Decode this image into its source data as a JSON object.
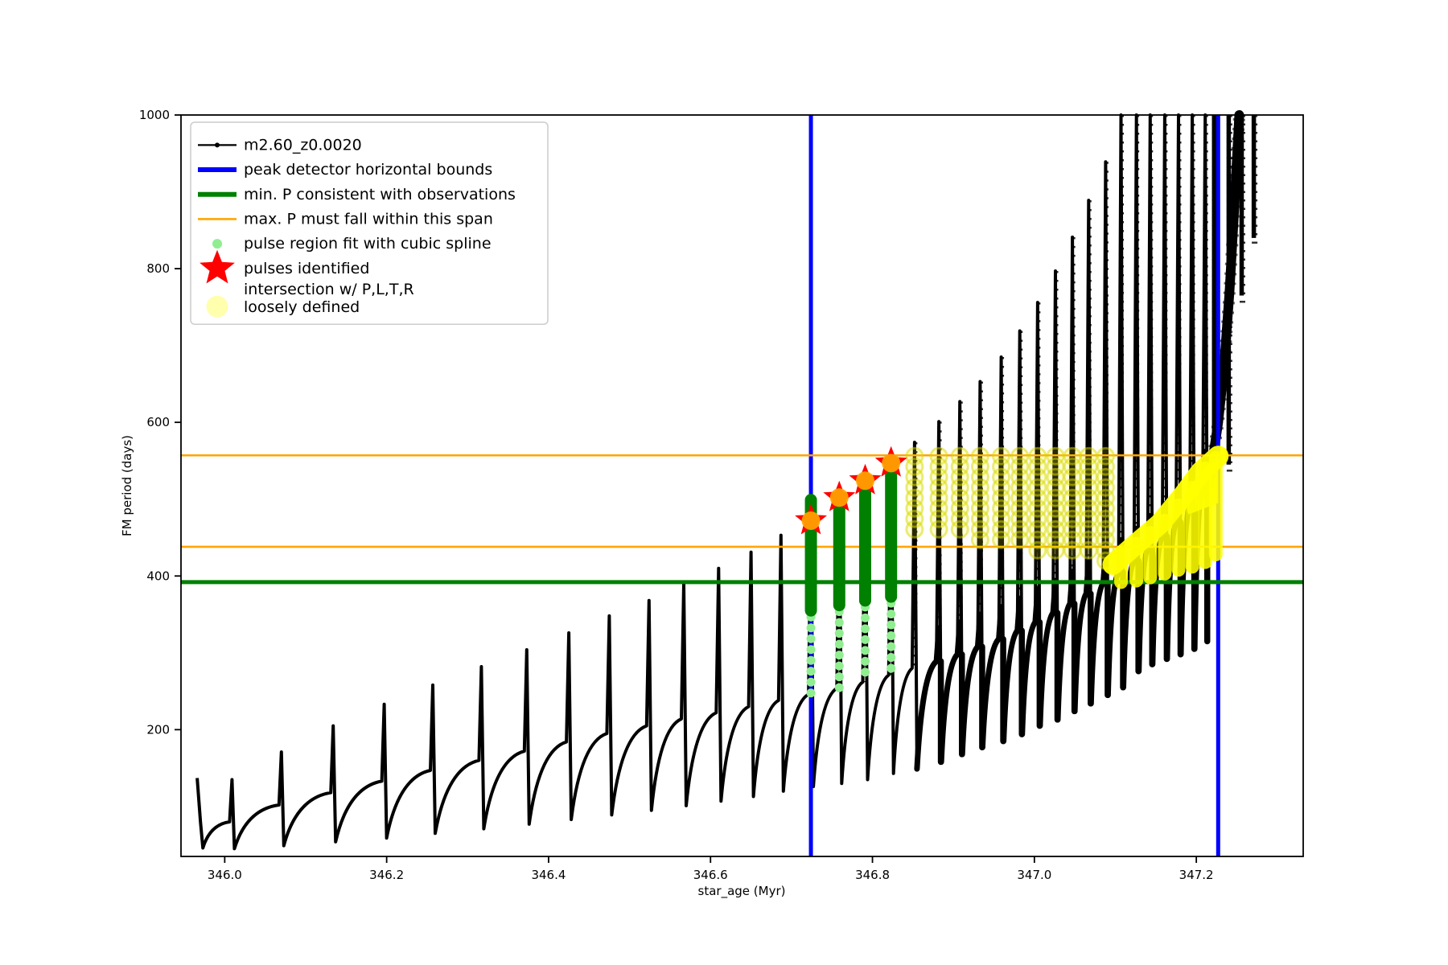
{
  "figure": {
    "background": "#FFFFFF"
  },
  "axes": {
    "xlabel": "star_age (Myr)",
    "ylabel": "FM period (days)",
    "xlim": [
      345.946,
      347.332
    ],
    "ylim": [
      35,
      1000
    ],
    "x_ticks": [
      {
        "v": 346.0,
        "label": "346.0"
      },
      {
        "v": 346.2,
        "label": "346.2"
      },
      {
        "v": 346.4,
        "label": "346.4"
      },
      {
        "v": 346.6,
        "label": "346.6"
      },
      {
        "v": 346.8,
        "label": "346.8"
      },
      {
        "v": 347.0,
        "label": "347.0"
      },
      {
        "v": 347.2,
        "label": "347.2"
      }
    ],
    "y_ticks": [
      {
        "v": 200,
        "label": "200"
      },
      {
        "v": 400,
        "label": "400"
      },
      {
        "v": 600,
        "label": "600"
      },
      {
        "v": 800,
        "label": "800"
      },
      {
        "v": 1000,
        "label": "1000"
      }
    ]
  },
  "legend": {
    "items": [
      {
        "label": "m2.60_z0.0020",
        "marker": "line-dot",
        "color": "#000000"
      },
      {
        "label": "peak detector horizontal bounds",
        "marker": "line-thick",
        "color": "#0000FF"
      },
      {
        "label": "min. P consistent with observations",
        "marker": "line-thick",
        "color": "#008000"
      },
      {
        "label": "max. P must fall within this span",
        "marker": "line-thin",
        "color": "#FFA500"
      },
      {
        "label": "pulse region fit with cubic spline",
        "marker": "dot-small",
        "color": "#90EE90"
      },
      {
        "label": "pulses identified",
        "marker": "star",
        "color": "#FF0000"
      },
      {
        "label": "intersection w/ P,L,T,R",
        "label2": "loosely defined",
        "marker": "dot-large",
        "color": "#FFFF00",
        "opacity": 0.32
      }
    ]
  },
  "chart_data": {
    "type": "line",
    "title": "",
    "series_name": "m2.60_z0.0020",
    "xlabel": "star_age (Myr)",
    "ylabel": "FM period (days)",
    "xlim": [
      345.946,
      347.332
    ],
    "ylim": [
      35,
      1000
    ],
    "colors": {
      "series": "#000000",
      "peak_detector_bounds": "#0000FF",
      "min_P_line": "#008000",
      "max_P_span_lines": "#FFA500",
      "spline_region": "#90EE90",
      "spline_solid": "#008000",
      "pulse_star": "#FF0000",
      "intersection": "#FFFF00"
    },
    "peak_detector_bound_ages": [
      346.724,
      347.227
    ],
    "min_P_consistent": 392,
    "max_P_span": [
      438,
      557
    ],
    "start_segment": [
      [
        345.966,
        137
      ],
      [
        345.97,
        80
      ],
      [
        345.973,
        46
      ]
    ],
    "pulses": {
      "columns": [
        "age_Myr",
        "spike_peak_period",
        "pre_spike_shoulder_period",
        "post_spike_min_period"
      ],
      "rows": [
        [
          346.009,
          135,
          80,
          45
        ],
        [
          346.07,
          171,
          102,
          49
        ],
        [
          346.134,
          205,
          118,
          54
        ],
        [
          346.197,
          233,
          133,
          59
        ],
        [
          346.257,
          258,
          147,
          65
        ],
        [
          346.317,
          282,
          160,
          71
        ],
        [
          346.373,
          304,
          172,
          77
        ],
        [
          346.425,
          326,
          184,
          83
        ],
        [
          346.475,
          348,
          195,
          89
        ],
        [
          346.524,
          368,
          205,
          95
        ],
        [
          346.567,
          390,
          214,
          101
        ],
        [
          346.61,
          410,
          222,
          107
        ],
        [
          346.65,
          431,
          230,
          113
        ],
        [
          346.687,
          453,
          238,
          120
        ],
        [
          346.724,
          480,
          246,
          126
        ],
        [
          346.759,
          505,
          254,
          130
        ],
        [
          346.791,
          528,
          262,
          135
        ],
        [
          346.823,
          550,
          271,
          143
        ],
        [
          346.852,
          574,
          280,
          149
        ],
        [
          346.882,
          601,
          289,
          158
        ],
        [
          346.908,
          627,
          298,
          168
        ],
        [
          346.933,
          653,
          308,
          177
        ],
        [
          346.959,
          685,
          318,
          185
        ],
        [
          346.982,
          719,
          329,
          194
        ],
        [
          347.004,
          756,
          340,
          205
        ],
        [
          347.026,
          797,
          352,
          213
        ],
        [
          347.047,
          841,
          364,
          224
        ],
        [
          347.067,
          889,
          377,
          234
        ],
        [
          347.088,
          939,
          391,
          245
        ],
        [
          347.107,
          1005,
          405,
          255
        ],
        [
          347.126,
          1005,
          420,
          276
        ],
        [
          347.143,
          1005,
          436,
          285
        ],
        [
          347.161,
          1005,
          452,
          292
        ],
        [
          347.178,
          1005,
          470,
          298
        ],
        [
          347.195,
          1005,
          492,
          305
        ],
        [
          347.211,
          1005,
          520,
          315
        ]
      ]
    },
    "final_rise": [
      [
        347.211,
        505
      ],
      [
        347.22,
        550
      ],
      [
        347.227,
        600
      ],
      [
        347.234,
        670
      ],
      [
        347.241,
        770
      ],
      [
        347.247,
        880
      ],
      [
        347.253,
        1005
      ]
    ],
    "edge_drops": [
      {
        "age": 347.222,
        "to": 555
      },
      {
        "age": 347.24,
        "to": 545
      },
      {
        "age": 347.256,
        "to": 765
      },
      {
        "age": 347.271,
        "to": 840
      }
    ],
    "pulses_identified": [
      {
        "age": 346.724,
        "period": 472
      },
      {
        "age": 346.759,
        "period": 502
      },
      {
        "age": 346.791,
        "period": 524
      },
      {
        "age": 346.823,
        "period": 547
      }
    ],
    "spline_columns": [
      {
        "age": 346.724,
        "solid": [
          499,
          355
        ],
        "pale_to": 237
      },
      {
        "age": 346.759,
        "solid": [
          504,
          362
        ],
        "pale_to": 245
      },
      {
        "age": 346.791,
        "solid": [
          527,
          368
        ],
        "pale_to": 261
      },
      {
        "age": 346.823,
        "solid": [
          551,
          373
        ],
        "pale_to": 277
      }
    ],
    "intersection_columns": [
      {
        "age": 346.852,
        "from": 556,
        "to": 455
      },
      {
        "age": 346.882,
        "from": 556,
        "to": 450
      },
      {
        "age": 346.908,
        "from": 556,
        "to": 448
      },
      {
        "age": 346.933,
        "from": 556,
        "to": 445
      },
      {
        "age": 346.959,
        "from": 556,
        "to": 442
      },
      {
        "age": 346.982,
        "from": 556,
        "to": 438
      },
      {
        "age": 347.004,
        "from": 556,
        "to": 430
      },
      {
        "age": 347.026,
        "from": 556,
        "to": 428
      },
      {
        "age": 347.047,
        "from": 556,
        "to": 425
      },
      {
        "age": 347.067,
        "from": 556,
        "to": 420
      },
      {
        "age": 347.088,
        "from": 556,
        "to": 418
      }
    ],
    "intersection_band": [
      [
        347.097,
        415
      ],
      [
        347.126,
        442
      ],
      [
        347.155,
        468
      ],
      [
        347.184,
        505
      ],
      [
        347.205,
        535
      ],
      [
        347.227,
        556
      ]
    ],
    "intersection_streaks": [
      {
        "age": 347.107,
        "from": 428,
        "to": 392
      },
      {
        "age": 347.126,
        "from": 442,
        "to": 394
      },
      {
        "age": 347.143,
        "from": 456,
        "to": 398
      },
      {
        "age": 347.161,
        "from": 472,
        "to": 403
      },
      {
        "age": 347.178,
        "from": 492,
        "to": 408
      },
      {
        "age": 347.195,
        "from": 515,
        "to": 412
      },
      {
        "age": 347.211,
        "from": 540,
        "to": 418
      },
      {
        "age": 347.224,
        "from": 554,
        "to": 428
      }
    ]
  }
}
